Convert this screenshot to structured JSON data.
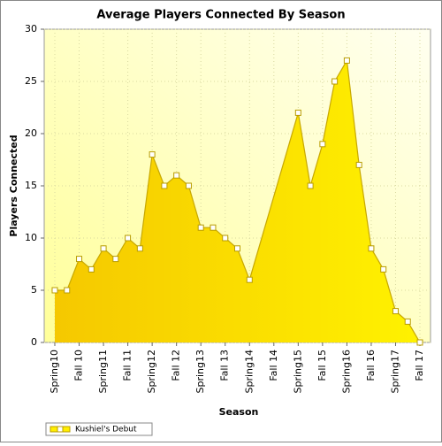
{
  "chart_data": {
    "type": "area",
    "title": "Average Players Connected By Season",
    "x_label": "Season",
    "y_label": "Players Connected",
    "categories": [
      "Spring10",
      null,
      "Fall 10",
      null,
      "Spring11",
      null,
      "Fall 11",
      null,
      "Spring12",
      null,
      "Fall 12",
      null,
      "Spring13",
      null,
      "Fall 13",
      null,
      "Spring14",
      null,
      "Fall 14",
      null,
      "Spring15",
      null,
      "Fall 15",
      null,
      "Spring16",
      null,
      "Fall 16",
      null,
      "Spring17",
      null,
      "Fall 17"
    ],
    "series": [
      {
        "name": "Kushiel's Debut",
        "color": "#ffee00",
        "values": [
          5,
          5,
          8,
          7,
          9,
          8,
          10,
          9,
          18,
          15,
          16,
          15,
          11,
          11,
          10,
          9,
          6,
          null,
          null,
          null,
          22,
          15,
          19,
          25,
          27,
          17,
          9,
          7,
          3,
          2,
          0
        ]
      }
    ],
    "ylim": [
      0,
      30
    ],
    "yticks": [
      0,
      5,
      10,
      15,
      20,
      25,
      30
    ],
    "grid": true
  }
}
